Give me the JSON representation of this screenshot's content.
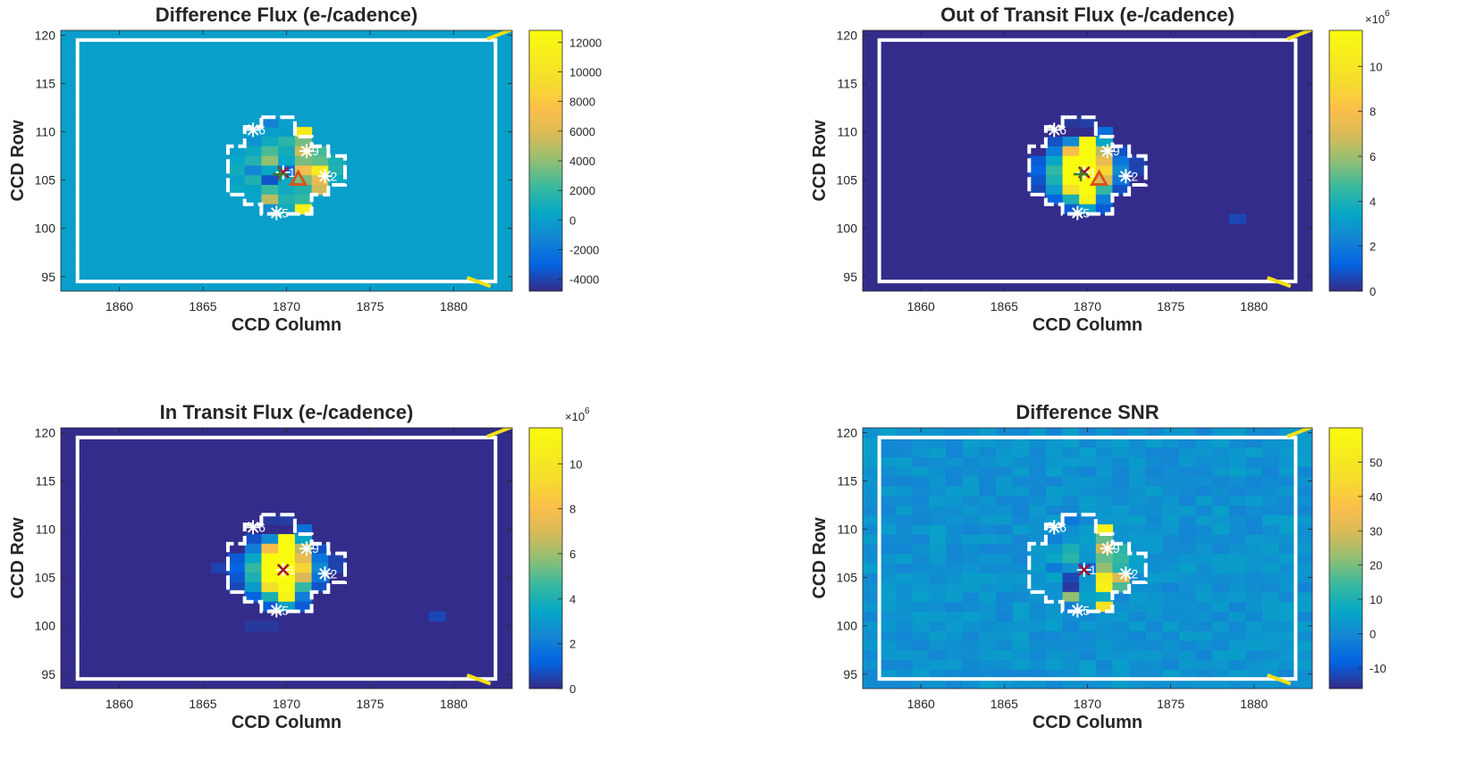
{
  "colors": {
    "background": "#ffffff",
    "aperture_outline": "#ffffff",
    "marker_star": "#ffffff",
    "marker_x_dark": "#a2142f",
    "marker_x_green": "#3a7d2c",
    "marker_triangle": "#d95319",
    "corner_marker": "#f2e013"
  },
  "chart_data": [
    {
      "type": "heatmap",
      "title": "Difference Flux (e-/cadence)",
      "xlabel": "CCD Column",
      "ylabel": "CCD Row",
      "x_ticks": [
        "1860",
        "1865",
        "1870",
        "1875",
        "1880"
      ],
      "y_ticks": [
        "95",
        "100",
        "105",
        "110",
        "115",
        "120"
      ],
      "xlim": [
        1856.5,
        1883.5
      ],
      "ylim": [
        93.5,
        120.5
      ],
      "background_value": 0,
      "clim": [
        -4800,
        12800
      ],
      "colorbar_ticks": [
        "12000",
        "10000",
        "8000",
        "6000",
        "4000",
        "2000",
        "0",
        "-2000",
        "-4000"
      ],
      "colorbar_multiplier": "",
      "cells": [
        [
          1869,
          111,
          -1500
        ],
        [
          1870,
          111,
          0
        ],
        [
          1871,
          110,
          11000
        ],
        [
          1868,
          109,
          -600
        ],
        [
          1869,
          109,
          800
        ],
        [
          1870,
          109,
          1800
        ],
        [
          1871,
          109,
          3500
        ],
        [
          1868,
          108,
          700
        ],
        [
          1869,
          108,
          2600
        ],
        [
          1870,
          108,
          1000
        ],
        [
          1871,
          108,
          5500
        ],
        [
          1872,
          108,
          2400
        ],
        [
          1867,
          107,
          500
        ],
        [
          1868,
          107,
          1500
        ],
        [
          1869,
          107,
          4000
        ],
        [
          1870,
          107,
          500
        ],
        [
          1871,
          107,
          3500
        ],
        [
          1872,
          107,
          3000
        ],
        [
          1873,
          107,
          1200
        ],
        [
          1867,
          106,
          900
        ],
        [
          1868,
          106,
          -1200
        ],
        [
          1869,
          106,
          600
        ],
        [
          1870,
          106,
          -2600
        ],
        [
          1871,
          106,
          7000
        ],
        [
          1872,
          106,
          11000
        ],
        [
          1873,
          106,
          1500
        ],
        [
          1867,
          105,
          200
        ],
        [
          1868,
          105,
          1400
        ],
        [
          1869,
          105,
          -3500
        ],
        [
          1870,
          105,
          700
        ],
        [
          1871,
          105,
          3500
        ],
        [
          1872,
          105,
          6500
        ],
        [
          1873,
          105,
          600
        ],
        [
          1867,
          104,
          600
        ],
        [
          1868,
          104,
          300
        ],
        [
          1869,
          104,
          2200
        ],
        [
          1870,
          104,
          800
        ],
        [
          1871,
          104,
          1500
        ],
        [
          1872,
          104,
          5500
        ],
        [
          1868,
          103,
          300
        ],
        [
          1869,
          103,
          5000
        ],
        [
          1870,
          103,
          1500
        ],
        [
          1871,
          103,
          2000
        ],
        [
          1869,
          102,
          -600
        ],
        [
          1870,
          102,
          800
        ],
        [
          1871,
          102,
          11500
        ]
      ],
      "stars": [
        {
          "label": "1",
          "col": 1869.8,
          "row": 105.8
        },
        {
          "label": "2",
          "col": 1872.3,
          "row": 105.4
        },
        {
          "label": "5",
          "col": 1869.4,
          "row": 101.6
        },
        {
          "label": "6",
          "col": 1868.0,
          "row": 110.2
        },
        {
          "label": "9",
          "col": 1871.2,
          "row": 108.0
        }
      ],
      "markers": [
        {
          "shape": "x",
          "color": "dark",
          "col": 1869.8,
          "row": 105.8
        },
        {
          "shape": "plus",
          "color": "green",
          "col": 1869.6,
          "row": 105.6
        },
        {
          "shape": "triangle",
          "color": "orange",
          "col": 1870.7,
          "row": 105.1
        }
      ]
    },
    {
      "type": "heatmap",
      "title": "Out of Transit Flux (e-/cadence)",
      "xlabel": "CCD Column",
      "ylabel": "CCD Row",
      "x_ticks": [
        "1860",
        "1865",
        "1870",
        "1875",
        "1880"
      ],
      "y_ticks": [
        "95",
        "100",
        "105",
        "110",
        "115",
        "120"
      ],
      "xlim": [
        1856.5,
        1883.5
      ],
      "ylim": [
        93.5,
        120.5
      ],
      "background_value": 0.05,
      "clim": [
        0,
        11.6
      ],
      "colorbar_ticks": [
        "10",
        "8",
        "6",
        "4",
        "2",
        "0"
      ],
      "colorbar_multiplier": "6",
      "cells": [
        [
          1869,
          111,
          0.3
        ],
        [
          1870,
          111,
          0.4
        ],
        [
          1871,
          110,
          1.6
        ],
        [
          1868,
          109,
          0.8
        ],
        [
          1869,
          109,
          2.5
        ],
        [
          1870,
          109,
          11.5
        ],
        [
          1871,
          109,
          3.5
        ],
        [
          1868,
          108,
          2.0
        ],
        [
          1869,
          108,
          8.0
        ],
        [
          1870,
          108,
          11.6
        ],
        [
          1871,
          108,
          6.5
        ],
        [
          1872,
          108,
          0.8
        ],
        [
          1867,
          107,
          1.0
        ],
        [
          1868,
          107,
          3.5
        ],
        [
          1869,
          107,
          11.6
        ],
        [
          1870,
          107,
          11.6
        ],
        [
          1871,
          107,
          7.5
        ],
        [
          1872,
          107,
          1.8
        ],
        [
          1873,
          107,
          0.5
        ],
        [
          1867,
          106,
          1.2
        ],
        [
          1868,
          106,
          4.5
        ],
        [
          1869,
          106,
          11.6
        ],
        [
          1870,
          106,
          11.6
        ],
        [
          1871,
          106,
          9.0
        ],
        [
          1872,
          106,
          2.5
        ],
        [
          1873,
          106,
          0.5
        ],
        [
          1867,
          105,
          0.9
        ],
        [
          1868,
          105,
          4.0
        ],
        [
          1869,
          105,
          11.6
        ],
        [
          1870,
          105,
          11.6
        ],
        [
          1871,
          105,
          7.0
        ],
        [
          1872,
          105,
          1.8
        ],
        [
          1867,
          104,
          0.6
        ],
        [
          1868,
          104,
          3.0
        ],
        [
          1869,
          104,
          9.5
        ],
        [
          1870,
          104,
          11.6
        ],
        [
          1871,
          104,
          4.5
        ],
        [
          1872,
          104,
          0.8
        ],
        [
          1868,
          103,
          1.2
        ],
        [
          1869,
          103,
          4.0
        ],
        [
          1870,
          103,
          11.0
        ],
        [
          1871,
          103,
          2.0
        ],
        [
          1869,
          102,
          1.0
        ],
        [
          1870,
          102,
          3.2
        ],
        [
          1871,
          102,
          1.0
        ],
        [
          1879,
          101,
          0.6
        ]
      ],
      "stars": [
        {
          "label": "1",
          "col": 1869.8,
          "row": 105.8
        },
        {
          "label": "2",
          "col": 1872.3,
          "row": 105.4
        },
        {
          "label": "5",
          "col": 1869.4,
          "row": 101.6
        },
        {
          "label": "6",
          "col": 1868.0,
          "row": 110.2
        },
        {
          "label": "9",
          "col": 1871.2,
          "row": 108.0
        }
      ],
      "markers": [
        {
          "shape": "x",
          "color": "dark",
          "col": 1869.8,
          "row": 105.8
        },
        {
          "shape": "plus",
          "color": "green",
          "col": 1869.6,
          "row": 105.6
        },
        {
          "shape": "triangle",
          "color": "orange",
          "col": 1870.7,
          "row": 105.1
        }
      ]
    },
    {
      "type": "heatmap",
      "title": "In Transit Flux (e-/cadence)",
      "xlabel": "CCD Column",
      "ylabel": "CCD Row",
      "x_ticks": [
        "1860",
        "1865",
        "1870",
        "1875",
        "1880"
      ],
      "y_ticks": [
        "95",
        "100",
        "105",
        "110",
        "115",
        "120"
      ],
      "xlim": [
        1856.5,
        1883.5
      ],
      "ylim": [
        93.5,
        120.5
      ],
      "background_value": 0.05,
      "clim": [
        0,
        11.6
      ],
      "colorbar_ticks": [
        "10",
        "8",
        "6",
        "4",
        "2",
        "0"
      ],
      "colorbar_multiplier": "6",
      "cells": [
        [
          1869,
          111,
          0.3
        ],
        [
          1870,
          111,
          0.4
        ],
        [
          1871,
          110,
          1.6
        ],
        [
          1868,
          109,
          0.8
        ],
        [
          1869,
          109,
          2.5
        ],
        [
          1870,
          109,
          11.5
        ],
        [
          1871,
          109,
          3.5
        ],
        [
          1868,
          108,
          2.0
        ],
        [
          1869,
          108,
          8.0
        ],
        [
          1870,
          108,
          11.6
        ],
        [
          1871,
          108,
          6.5
        ],
        [
          1872,
          108,
          0.8
        ],
        [
          1867,
          107,
          1.0
        ],
        [
          1868,
          107,
          3.5
        ],
        [
          1869,
          107,
          11.6
        ],
        [
          1870,
          107,
          11.6
        ],
        [
          1871,
          107,
          7.5
        ],
        [
          1872,
          107,
          1.8
        ],
        [
          1873,
          107,
          0.5
        ],
        [
          1867,
          106,
          1.2
        ],
        [
          1868,
          106,
          4.5
        ],
        [
          1869,
          106,
          11.6
        ],
        [
          1870,
          106,
          11.6
        ],
        [
          1871,
          106,
          9.0
        ],
        [
          1872,
          106,
          2.5
        ],
        [
          1873,
          106,
          0.5
        ],
        [
          1867,
          105,
          0.9
        ],
        [
          1868,
          105,
          4.0
        ],
        [
          1869,
          105,
          11.6
        ],
        [
          1870,
          105,
          11.6
        ],
        [
          1871,
          105,
          7.0
        ],
        [
          1872,
          105,
          1.8
        ],
        [
          1867,
          104,
          0.6
        ],
        [
          1868,
          104,
          3.0
        ],
        [
          1869,
          104,
          9.5
        ],
        [
          1870,
          104,
          11.6
        ],
        [
          1871,
          104,
          4.5
        ],
        [
          1872,
          104,
          0.8
        ],
        [
          1868,
          103,
          1.2
        ],
        [
          1869,
          103,
          4.0
        ],
        [
          1870,
          103,
          11.0
        ],
        [
          1871,
          103,
          2.0
        ],
        [
          1869,
          102,
          1.0
        ],
        [
          1870,
          102,
          3.2
        ],
        [
          1871,
          102,
          1.0
        ],
        [
          1866,
          106,
          0.5
        ],
        [
          1879,
          101,
          0.6
        ],
        [
          1868,
          100,
          0.3
        ],
        [
          1869,
          100,
          0.3
        ]
      ],
      "stars": [
        {
          "label": "1",
          "col": 1869.8,
          "row": 105.8
        },
        {
          "label": "2",
          "col": 1872.3,
          "row": 105.4
        },
        {
          "label": "5",
          "col": 1869.4,
          "row": 101.6
        },
        {
          "label": "6",
          "col": 1868.0,
          "row": 110.2
        },
        {
          "label": "9",
          "col": 1871.2,
          "row": 108.0
        }
      ],
      "markers": [
        {
          "shape": "x",
          "color": "dark",
          "col": 1869.8,
          "row": 105.8
        }
      ]
    },
    {
      "type": "heatmap",
      "title": "Difference SNR",
      "xlabel": "CCD Column",
      "ylabel": "CCD Row",
      "x_ticks": [
        "1860",
        "1865",
        "1870",
        "1875",
        "1880"
      ],
      "y_ticks": [
        "95",
        "100",
        "105",
        "110",
        "115",
        "120"
      ],
      "xlim": [
        1856.5,
        1883.5
      ],
      "ylim": [
        93.5,
        120.5
      ],
      "background_value": 2,
      "background_noise": 3,
      "clim": [
        -16,
        60
      ],
      "colorbar_ticks": [
        "50",
        "40",
        "30",
        "20",
        "10",
        "0",
        "-10"
      ],
      "colorbar_multiplier": "",
      "cells": [
        [
          1869,
          111,
          -4
        ],
        [
          1870,
          111,
          0
        ],
        [
          1871,
          110,
          55
        ],
        [
          1868,
          109,
          -2
        ],
        [
          1869,
          109,
          3
        ],
        [
          1870,
          109,
          5
        ],
        [
          1871,
          109,
          18
        ],
        [
          1868,
          108,
          4
        ],
        [
          1869,
          108,
          10
        ],
        [
          1870,
          108,
          4
        ],
        [
          1871,
          108,
          28
        ],
        [
          1872,
          108,
          12
        ],
        [
          1867,
          107,
          3
        ],
        [
          1868,
          107,
          7
        ],
        [
          1869,
          107,
          12
        ],
        [
          1870,
          107,
          3
        ],
        [
          1871,
          107,
          18
        ],
        [
          1872,
          107,
          14
        ],
        [
          1873,
          107,
          6
        ],
        [
          1867,
          106,
          4
        ],
        [
          1868,
          106,
          -3
        ],
        [
          1869,
          106,
          2
        ],
        [
          1870,
          106,
          -8
        ],
        [
          1871,
          106,
          22
        ],
        [
          1872,
          106,
          12
        ],
        [
          1873,
          106,
          5
        ],
        [
          1867,
          105,
          2
        ],
        [
          1868,
          105,
          6
        ],
        [
          1869,
          105,
          -12
        ],
        [
          1870,
          105,
          3
        ],
        [
          1871,
          105,
          52
        ],
        [
          1872,
          105,
          30
        ],
        [
          1867,
          104,
          3
        ],
        [
          1868,
          104,
          2
        ],
        [
          1869,
          104,
          -14
        ],
        [
          1870,
          104,
          4
        ],
        [
          1871,
          104,
          55
        ],
        [
          1872,
          104,
          16
        ],
        [
          1868,
          103,
          2
        ],
        [
          1869,
          103,
          22
        ],
        [
          1870,
          103,
          6
        ],
        [
          1871,
          103,
          8
        ],
        [
          1869,
          102,
          -2
        ],
        [
          1870,
          102,
          4
        ],
        [
          1871,
          102,
          48
        ]
      ],
      "stars": [
        {
          "label": "1",
          "col": 1869.8,
          "row": 105.8
        },
        {
          "label": "2",
          "col": 1872.3,
          "row": 105.4
        },
        {
          "label": "5",
          "col": 1869.4,
          "row": 101.6
        },
        {
          "label": "6",
          "col": 1868.0,
          "row": 110.2
        },
        {
          "label": "9",
          "col": 1871.2,
          "row": 108.0
        }
      ],
      "markers": [
        {
          "shape": "x",
          "color": "dark",
          "col": 1869.8,
          "row": 105.8
        }
      ]
    }
  ]
}
